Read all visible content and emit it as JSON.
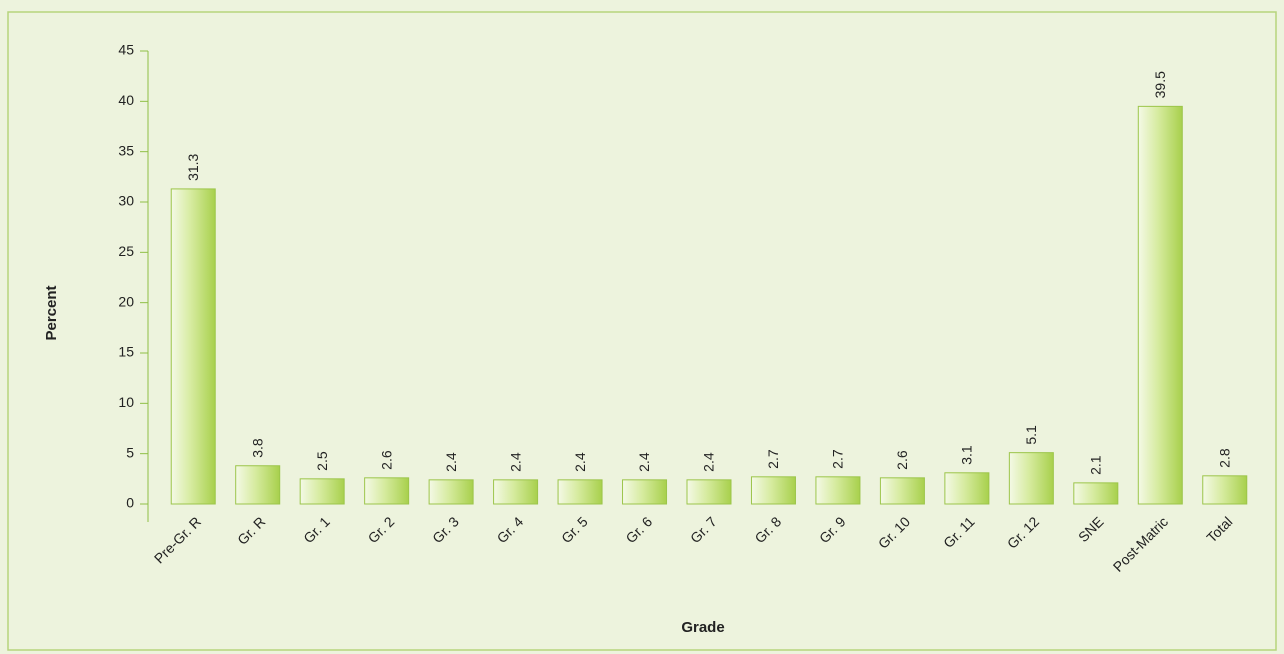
{
  "chart_data": {
    "type": "bar",
    "x_label": "Grade",
    "y_label": "Percent",
    "categories": [
      "Pre-Gr. R",
      "Gr. R",
      "Gr. 1",
      "Gr. 2",
      "Gr. 3",
      "Gr. 4",
      "Gr. 5",
      "Gr. 6",
      "Gr. 7",
      "Gr. 8",
      "Gr. 9",
      "Gr. 10",
      "Gr. 11",
      "Gr. 12",
      "SNE",
      "Post-Matric",
      "Total"
    ],
    "values": [
      31.3,
      3.8,
      2.5,
      2.6,
      2.4,
      2.4,
      2.4,
      2.4,
      2.4,
      2.7,
      2.7,
      2.6,
      3.1,
      5.1,
      2.1,
      39.5,
      2.8
    ],
    "color": "#a8d04c",
    "ylim": [
      0,
      45
    ],
    "yticks": [
      0,
      5,
      10,
      15,
      20,
      25,
      30,
      35,
      40,
      45
    ],
    "grid": false
  }
}
